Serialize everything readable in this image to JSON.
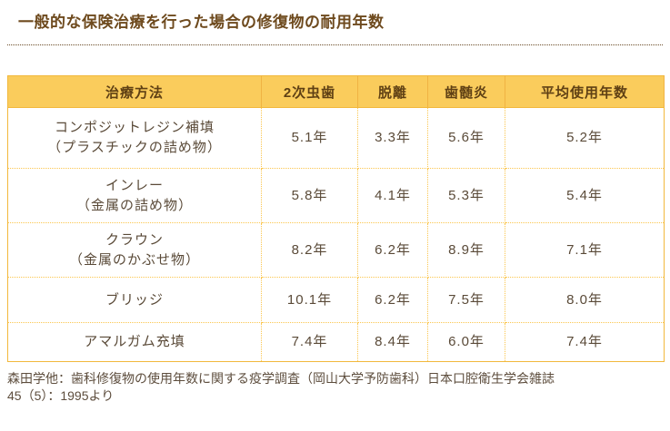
{
  "page": {
    "title": "一般的な保険治療を行った場合の修復物の耐用年数",
    "source_note_line1": "森田学他：歯科修復物の使用年数に関する疫学調査（岡山大学予防歯科）日本口腔衛生学会雑誌",
    "source_note_line2": "45（5）：1995より"
  },
  "table": {
    "headers": [
      "治療方法",
      "2次虫歯",
      "脱離",
      "歯髄炎",
      "平均使用年数"
    ],
    "rows": [
      {
        "treatment_line1": "コンポジットレジン補填",
        "treatment_line2": "（プラスチックの詰め物）",
        "values": [
          "5.1年",
          "3.3年",
          "5.6年",
          "5.2年"
        ]
      },
      {
        "treatment_line1": "インレー",
        "treatment_line2": "（金属の詰め物）",
        "values": [
          "5.8年",
          "4.1年",
          "5.3年",
          "5.4年"
        ]
      },
      {
        "treatment_line1": "クラウン",
        "treatment_line2": "（金属のかぶせ物）",
        "values": [
          "8.2年",
          "6.2年",
          "8.9年",
          "7.1年"
        ]
      },
      {
        "treatment_line1": "ブリッジ",
        "treatment_line2": "",
        "values": [
          "10.1年",
          "6.2年",
          "7.5年",
          "8.0年"
        ]
      },
      {
        "treatment_line1": "アマルガム充填",
        "treatment_line2": "",
        "values": [
          "7.4年",
          "8.4年",
          "6.0年",
          "7.4年"
        ]
      }
    ]
  },
  "colors": {
    "header_bg": "#FACC5C",
    "table_outer_border": "#F2B83C",
    "inner_dotted_border": "#FBC64E",
    "title_text": "#6E4A1E",
    "header_text": "#5F4014",
    "body_text": "#5A4A38",
    "source_text": "#5D4D3D"
  }
}
